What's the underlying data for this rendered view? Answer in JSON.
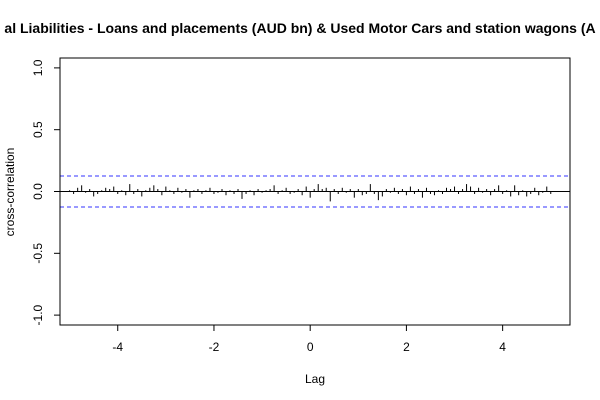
{
  "chart_data": {
    "type": "bar",
    "title": "al Liabilities - Loans and placements (AUD bn) & Used Motor Cars and station wagons (A",
    "xlabel": "Lag",
    "ylabel": "cross-correlation",
    "xlim": [
      -5.2,
      5.4
    ],
    "ylim": [
      -1.08,
      1.08
    ],
    "x_ticks": [
      -4,
      -2,
      0,
      2,
      4
    ],
    "x_tick_labels": [
      "-4",
      "-2",
      "0",
      "2",
      "4"
    ],
    "y_ticks": [
      -1.0,
      -0.5,
      0.0,
      0.5,
      1.0
    ],
    "y_tick_labels": [
      "-1.0",
      "-0.5",
      "0.0",
      "0.5",
      "1.0"
    ],
    "confidence_bounds": [
      0.125,
      -0.125
    ],
    "grid": false,
    "colors": {
      "bars": "#000000",
      "bounds": "#3333ff",
      "zero_line": "#000000",
      "frame": "#000000"
    },
    "lags": [
      -5.0,
      -4.917,
      -4.833,
      -4.75,
      -4.667,
      -4.583,
      -4.5,
      -4.417,
      -4.333,
      -4.25,
      -4.167,
      -4.083,
      -4.0,
      -3.917,
      -3.833,
      -3.75,
      -3.667,
      -3.583,
      -3.5,
      -3.417,
      -3.333,
      -3.25,
      -3.167,
      -3.083,
      -3.0,
      -2.917,
      -2.833,
      -2.75,
      -2.667,
      -2.583,
      -2.5,
      -2.417,
      -2.333,
      -2.25,
      -2.167,
      -2.083,
      -2.0,
      -1.917,
      -1.833,
      -1.75,
      -1.667,
      -1.583,
      -1.5,
      -1.417,
      -1.333,
      -1.25,
      -1.167,
      -1.083,
      -1.0,
      -0.917,
      -0.833,
      -0.75,
      -0.667,
      -0.583,
      -0.5,
      -0.417,
      -0.333,
      -0.25,
      -0.167,
      -0.083,
      0.0,
      0.083,
      0.167,
      0.25,
      0.333,
      0.417,
      0.5,
      0.583,
      0.667,
      0.75,
      0.833,
      0.917,
      1.0,
      1.083,
      1.167,
      1.25,
      1.333,
      1.417,
      1.5,
      1.583,
      1.667,
      1.75,
      1.833,
      1.917,
      2.0,
      2.083,
      2.167,
      2.25,
      2.333,
      2.417,
      2.5,
      2.583,
      2.667,
      2.75,
      2.833,
      2.917,
      3.0,
      3.083,
      3.167,
      3.25,
      3.333,
      3.417,
      3.5,
      3.583,
      3.667,
      3.75,
      3.833,
      3.917,
      4.0,
      4.083,
      4.167,
      4.25,
      4.333,
      4.417,
      4.5,
      4.583,
      4.667,
      4.75,
      4.833,
      4.917,
      5.0
    ],
    "values": [
      0.01,
      -0.02,
      0.03,
      0.05,
      -0.01,
      0.02,
      -0.04,
      -0.02,
      0.01,
      0.03,
      0.02,
      0.04,
      -0.02,
      0.01,
      -0.03,
      0.06,
      -0.02,
      0.02,
      -0.04,
      0.01,
      0.03,
      0.05,
      0.02,
      -0.03,
      0.04,
      0.01,
      -0.02,
      0.03,
      -0.01,
      0.02,
      -0.05,
      0.01,
      0.02,
      -0.02,
      0.01,
      0.03,
      -0.02,
      -0.01,
      0.02,
      -0.03,
      0.01,
      -0.02,
      0.02,
      -0.06,
      -0.02,
      0.01,
      -0.03,
      0.02,
      -0.01,
      0.01,
      0.02,
      0.05,
      -0.02,
      0.01,
      0.03,
      -0.02,
      -0.01,
      0.02,
      -0.03,
      0.04,
      -0.05,
      0.02,
      0.06,
      0.02,
      0.03,
      -0.08,
      0.02,
      -0.02,
      0.03,
      -0.01,
      0.02,
      -0.05,
      0.02,
      -0.03,
      -0.02,
      0.06,
      -0.02,
      -0.07,
      -0.04,
      0.02,
      -0.01,
      0.03,
      -0.02,
      0.02,
      -0.03,
      0.04,
      -0.02,
      0.02,
      -0.05,
      0.03,
      -0.02,
      -0.03,
      0.01,
      -0.02,
      0.03,
      0.02,
      0.04,
      -0.02,
      0.02,
      0.06,
      0.04,
      -0.02,
      0.03,
      -0.01,
      0.02,
      -0.03,
      0.02,
      0.05,
      -0.02,
      0.01,
      -0.04,
      0.05,
      -0.03,
      0.01,
      -0.04,
      -0.02,
      0.03,
      -0.03,
      -0.01,
      0.04,
      -0.02
    ]
  }
}
